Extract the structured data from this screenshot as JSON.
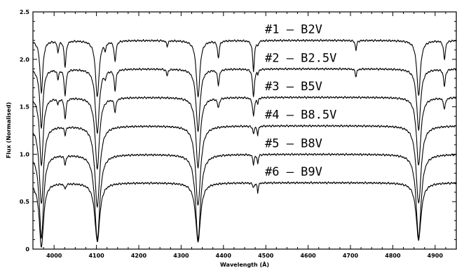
{
  "chart_data": {
    "type": "line",
    "xlabel": "Wavelength (Å)",
    "ylabel": "Flux (Normalised)",
    "xlim": [
      3950,
      4950
    ],
    "ylim": [
      0,
      2.5
    ],
    "x_ticks": [
      4000,
      4100,
      4200,
      4300,
      4400,
      4500,
      4600,
      4700,
      4800,
      4900
    ],
    "y_ticks": [
      0,
      0.5,
      1.0,
      1.5,
      2.0,
      2.5
    ],
    "y_tick_labels": [
      "0",
      "0.5",
      "1.0",
      "1.5",
      "2.0",
      "2.5"
    ],
    "grid": false,
    "series": [
      {
        "name": "#1 – B2V",
        "continuum": 2.2,
        "lines": [
          {
            "x": 3970,
            "depth": 0.55,
            "width": 4
          },
          {
            "x": 4009,
            "depth": 0.12,
            "width": 2
          },
          {
            "x": 4026,
            "depth": 0.28,
            "width": 2.5
          },
          {
            "x": 4102,
            "depth": 0.6,
            "width": 5
          },
          {
            "x": 4121,
            "depth": 0.08,
            "width": 2
          },
          {
            "x": 4144,
            "depth": 0.22,
            "width": 2.5
          },
          {
            "x": 4267,
            "depth": 0.06,
            "width": 2
          },
          {
            "x": 4340,
            "depth": 0.6,
            "width": 5
          },
          {
            "x": 4388,
            "depth": 0.18,
            "width": 2.5
          },
          {
            "x": 4471,
            "depth": 0.32,
            "width": 2.5
          },
          {
            "x": 4481,
            "depth": 0.05,
            "width": 1.5
          },
          {
            "x": 4713,
            "depth": 0.1,
            "width": 2
          },
          {
            "x": 4861,
            "depth": 0.58,
            "width": 5
          },
          {
            "x": 4922,
            "depth": 0.2,
            "width": 2.5
          }
        ]
      },
      {
        "name": "#2 – B2.5V",
        "continuum": 1.9,
        "lines": [
          {
            "x": 3970,
            "depth": 0.62,
            "width": 4.5
          },
          {
            "x": 4009,
            "depth": 0.1,
            "width": 2
          },
          {
            "x": 4026,
            "depth": 0.28,
            "width": 2.5
          },
          {
            "x": 4102,
            "depth": 0.68,
            "width": 5.5
          },
          {
            "x": 4121,
            "depth": 0.07,
            "width": 2
          },
          {
            "x": 4144,
            "depth": 0.22,
            "width": 2.5
          },
          {
            "x": 4267,
            "depth": 0.07,
            "width": 2
          },
          {
            "x": 4340,
            "depth": 0.66,
            "width": 5.5
          },
          {
            "x": 4388,
            "depth": 0.16,
            "width": 2.5
          },
          {
            "x": 4471,
            "depth": 0.3,
            "width": 2.5
          },
          {
            "x": 4481,
            "depth": 0.05,
            "width": 1.5
          },
          {
            "x": 4713,
            "depth": 0.08,
            "width": 2
          },
          {
            "x": 4861,
            "depth": 0.64,
            "width": 5.5
          },
          {
            "x": 4922,
            "depth": 0.18,
            "width": 2.5
          }
        ]
      },
      {
        "name": "#3 – B5V",
        "continuum": 1.6,
        "lines": [
          {
            "x": 3970,
            "depth": 0.72,
            "width": 5
          },
          {
            "x": 4009,
            "depth": 0.06,
            "width": 2
          },
          {
            "x": 4026,
            "depth": 0.22,
            "width": 2.5
          },
          {
            "x": 4102,
            "depth": 0.75,
            "width": 6
          },
          {
            "x": 4144,
            "depth": 0.14,
            "width": 2.5
          },
          {
            "x": 4340,
            "depth": 0.74,
            "width": 6
          },
          {
            "x": 4388,
            "depth": 0.1,
            "width": 2.5
          },
          {
            "x": 4471,
            "depth": 0.2,
            "width": 2.5
          },
          {
            "x": 4481,
            "depth": 0.06,
            "width": 1.5
          },
          {
            "x": 4861,
            "depth": 0.72,
            "width": 6
          },
          {
            "x": 4922,
            "depth": 0.12,
            "width": 2.5
          }
        ]
      },
      {
        "name": "#4 – B8.5V",
        "continuum": 1.3,
        "lines": [
          {
            "x": 3970,
            "depth": 0.82,
            "width": 6
          },
          {
            "x": 4026,
            "depth": 0.08,
            "width": 2
          },
          {
            "x": 4102,
            "depth": 0.85,
            "width": 7
          },
          {
            "x": 4340,
            "depth": 0.84,
            "width": 7
          },
          {
            "x": 4471,
            "depth": 0.08,
            "width": 2
          },
          {
            "x": 4481,
            "depth": 0.1,
            "width": 1.5
          },
          {
            "x": 4861,
            "depth": 0.82,
            "width": 7
          }
        ]
      },
      {
        "name": "#5 – B8V",
        "continuum": 1.0,
        "lines": [
          {
            "x": 3970,
            "depth": 0.88,
            "width": 6
          },
          {
            "x": 4026,
            "depth": 0.1,
            "width": 2
          },
          {
            "x": 4102,
            "depth": 0.9,
            "width": 7
          },
          {
            "x": 4340,
            "depth": 0.9,
            "width": 7
          },
          {
            "x": 4471,
            "depth": 0.1,
            "width": 2
          },
          {
            "x": 4481,
            "depth": 0.1,
            "width": 1.5
          },
          {
            "x": 4861,
            "depth": 0.88,
            "width": 7
          }
        ]
      },
      {
        "name": "#6 – B9V",
        "continuum": 0.7,
        "lines": [
          {
            "x": 3970,
            "depth": 0.68,
            "width": 6
          },
          {
            "x": 4026,
            "depth": 0.06,
            "width": 2
          },
          {
            "x": 4102,
            "depth": 0.62,
            "width": 7
          },
          {
            "x": 4340,
            "depth": 0.62,
            "width": 7
          },
          {
            "x": 4471,
            "depth": 0.05,
            "width": 2
          },
          {
            "x": 4481,
            "depth": 0.1,
            "width": 1.5
          },
          {
            "x": 4861,
            "depth": 0.6,
            "width": 7
          }
        ]
      }
    ]
  }
}
